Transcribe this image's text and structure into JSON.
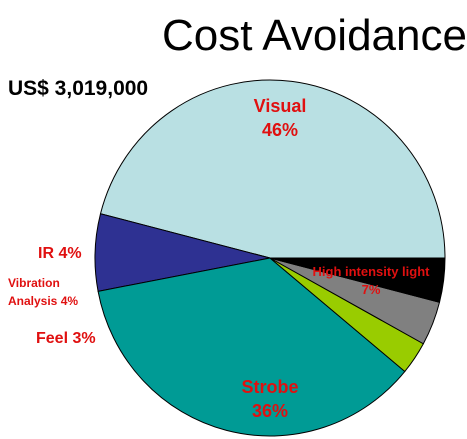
{
  "chart_data": {
    "type": "pie",
    "title": "Cost Avoidance",
    "subtitle": "US$ 3,019,000",
    "slices": [
      {
        "label": "Visual",
        "pct_text": "46%",
        "value": 46,
        "color": "#b9e0e3"
      },
      {
        "label": "High intensity light",
        "pct_text": "7%",
        "value": 7,
        "color": "#2e3192"
      },
      {
        "label": "Strobe",
        "pct_text": "36%",
        "value": 36,
        "color": "#009b95"
      },
      {
        "label": "Feel",
        "pct_text": "3%",
        "value": 3,
        "color": "#99cc00"
      },
      {
        "label": "Vibration Analysis",
        "pct_text": "4%",
        "value": 4,
        "color": "#808080"
      },
      {
        "label": "IR",
        "pct_text": "4%",
        "value": 4,
        "color": "#000000"
      }
    ],
    "label_color": "#e01010",
    "start": "3 o'clock, counter-clockwise"
  }
}
